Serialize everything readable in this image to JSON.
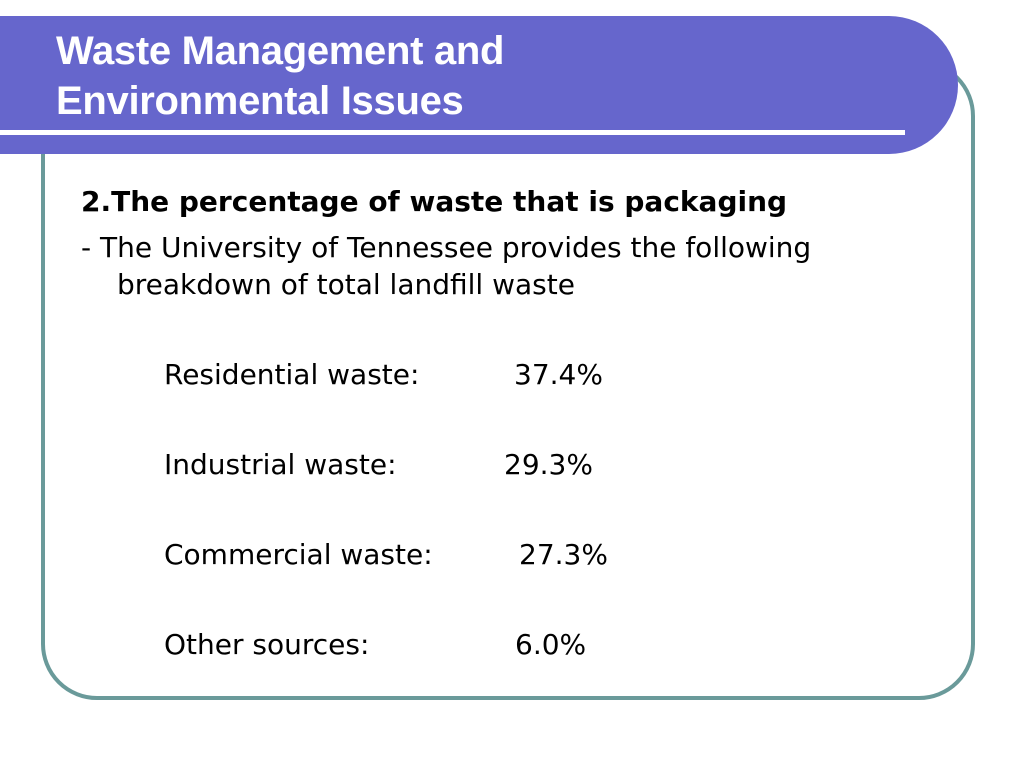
{
  "title": {
    "line1": "Waste Management and",
    "line2": "Environmental Issues"
  },
  "heading": "2.The percentage of waste that is packaging",
  "intro": "- The University of Tennessee provides the following breakdown of total landfill waste",
  "breakdown": [
    {
      "label": "Residential waste:",
      "value": "37.4%"
    },
    {
      "label": "Industrial waste:",
      "value": "29.3%"
    },
    {
      "label": "Commercial waste:",
      "value": "27.3%"
    },
    {
      "label": "Other sources:",
      "value": "6.0%"
    }
  ],
  "colors": {
    "title_band": "#6666cc",
    "frame_border": "#6a9a9a",
    "title_text": "#ffffff",
    "body_text": "#000000"
  }
}
